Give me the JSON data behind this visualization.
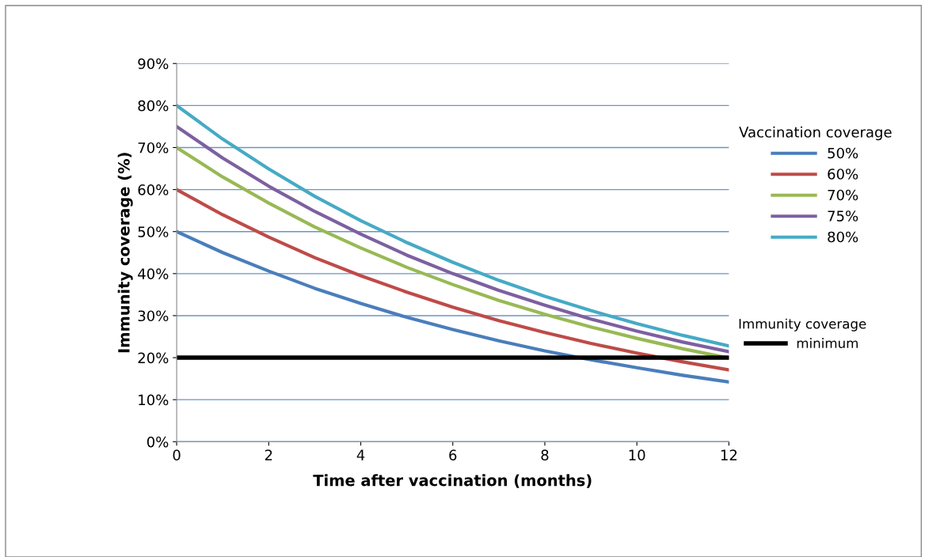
{
  "chart_data": {
    "type": "line",
    "xlabel": "Time after vaccination (months)",
    "ylabel": "Immunity coverage (%)",
    "legend_title": "Vaccination coverage",
    "annotations": [
      "Immunity coverage"
    ],
    "x": [
      0,
      1,
      2,
      3,
      4,
      5,
      6,
      7,
      8,
      9,
      10,
      11,
      12
    ],
    "series": [
      {
        "name": "50%",
        "color": "#4a7ebb",
        "values": [
          50,
          45.0,
          40.6,
          36.5,
          32.9,
          29.6,
          26.7,
          24.0,
          21.6,
          19.5,
          17.6,
          15.8,
          14.2
        ]
      },
      {
        "name": "60%",
        "color": "#be4b48",
        "values": [
          60,
          54.0,
          48.7,
          43.8,
          39.5,
          35.6,
          32.0,
          28.8,
          26.0,
          23.4,
          21.1,
          19.0,
          17.1
        ]
      },
      {
        "name": "70%",
        "color": "#98b954",
        "values": [
          70,
          63.0,
          56.8,
          51.1,
          46.1,
          41.5,
          37.4,
          33.6,
          30.3,
          27.3,
          24.6,
          22.1,
          19.9
        ]
      },
      {
        "name": "75%",
        "color": "#7d60a0",
        "values": [
          75,
          67.5,
          60.8,
          54.8,
          49.4,
          44.4,
          40.0,
          36.0,
          32.5,
          29.2,
          26.3,
          23.7,
          21.4
        ]
      },
      {
        "name": "80%",
        "color": "#46aac5",
        "values": [
          80,
          72.0,
          64.9,
          58.4,
          52.6,
          47.4,
          42.7,
          38.4,
          34.6,
          31.2,
          28.1,
          25.3,
          22.8
        ]
      },
      {
        "name": "minimum",
        "color": "#000000",
        "values": [
          20,
          20,
          20,
          20,
          20,
          20,
          20,
          20,
          20,
          20,
          20,
          20,
          20
        ]
      }
    ],
    "xlim": [
      0,
      12
    ],
    "xticks": [
      0,
      2,
      4,
      6,
      8,
      10,
      12
    ],
    "ylim": [
      0,
      90
    ],
    "yticks": [
      {
        "value": 0,
        "label": "0%"
      },
      {
        "value": 10,
        "label": "10%"
      },
      {
        "value": 20,
        "label": "20%"
      },
      {
        "value": 30,
        "label": "30%"
      },
      {
        "value": 40,
        "label": "40%"
      },
      {
        "value": 50,
        "label": "50%"
      },
      {
        "value": 60,
        "label": "60%"
      },
      {
        "value": 70,
        "label": "70%"
      },
      {
        "value": 80,
        "label": "80%"
      },
      {
        "value": 90,
        "label": "90%"
      }
    ],
    "grid": "y",
    "legend": "right",
    "marker": "none",
    "line_style": "solid"
  }
}
